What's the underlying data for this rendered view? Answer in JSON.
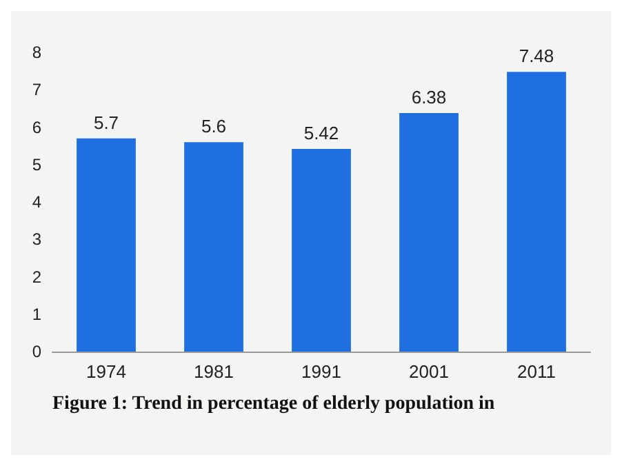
{
  "chart_data": {
    "type": "bar",
    "categories": [
      "1974",
      "1981",
      "1991",
      "2001",
      "2011"
    ],
    "values": [
      5.7,
      5.6,
      5.42,
      6.38,
      7.48
    ],
    "color": "#1f6fe0",
    "ylim": [
      0,
      8
    ],
    "yticks": [
      0,
      1,
      2,
      3,
      4,
      5,
      6,
      7,
      8
    ],
    "grid": false,
    "data_labels": true,
    "annotations": [
      "Figure 1: Trend in percentage of elderly population in"
    ]
  }
}
